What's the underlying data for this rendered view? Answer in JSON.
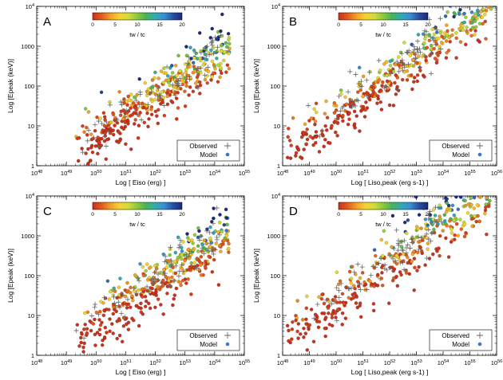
{
  "colors": {
    "colorscale": [
      "#c8321e",
      "#e05a1e",
      "#f0a028",
      "#f5d232",
      "#d2dc3c",
      "#8cc83c",
      "#46b45a",
      "#32aab4",
      "#3c8cd2",
      "#2850a0",
      "#1e2878"
    ],
    "observed_marker": "#666666",
    "model_marker": "#3c78c8",
    "axis": "#000000"
  },
  "colorbar": {
    "label": "tw / tc",
    "ticks": [
      "0",
      "5",
      "10",
      "15",
      "20"
    ],
    "range": [
      0,
      20
    ]
  },
  "legend": {
    "observed": "Observed",
    "model": "Model"
  },
  "chart_data": [
    {
      "panel": "A",
      "type": "scatter",
      "xlabel": "Log [ Eiso (erg) ]",
      "ylabel": "Log [Epeak (keV)]",
      "xlim": [
        48,
        55
      ],
      "ylim": [
        0,
        4
      ],
      "x_ticks": [
        "10^48",
        "10^49",
        "10^50",
        "10^51",
        "10^52",
        "10^53",
        "10^54",
        "10^55"
      ],
      "y_ticks": [
        "1",
        "10",
        "100",
        "1000",
        "10^4"
      ],
      "trend": {
        "slope": 0.5,
        "intercept_at_x48": -0.3
      },
      "model_points": {
        "n": 380,
        "x_range": [
          49.3,
          54.5
        ],
        "scatter_dex": 0.32
      },
      "observed_points": {
        "n": 70,
        "x_range": [
          49.2,
          54.2
        ],
        "scatter_dex": 0.25
      }
    },
    {
      "panel": "B",
      "type": "scatter",
      "xlabel": "Log [ Liso,peak (erg s-1) ]",
      "ylabel": "Log [Epeak (keV)]",
      "xlim": [
        48,
        56
      ],
      "ylim": [
        0,
        4
      ],
      "x_ticks": [
        "10^48",
        "10^49",
        "10^50",
        "10^51",
        "10^52",
        "10^53",
        "10^54",
        "10^55",
        "10^56"
      ],
      "y_ticks": [
        "1",
        "10",
        "100",
        "1000",
        "10^4"
      ],
      "trend": {
        "slope": 0.48,
        "intercept_at_x48": 0.3
      },
      "model_points": {
        "n": 380,
        "x_range": [
          48.1,
          55.8
        ],
        "scatter_dex": 0.32
      },
      "observed_points": {
        "n": 70,
        "x_range": [
          48.7,
          54.0
        ],
        "scatter_dex": 0.25
      }
    },
    {
      "panel": "C",
      "type": "scatter",
      "xlabel": "Log [ Eiso (erg) ]",
      "ylabel": "Log [Epeak (keV)]",
      "xlim": [
        48,
        55
      ],
      "ylim": [
        0,
        4
      ],
      "x_ticks": [
        "10^48",
        "10^49",
        "10^50",
        "10^51",
        "10^52",
        "10^53",
        "10^54",
        "10^55"
      ],
      "y_ticks": [
        "1",
        "10",
        "100",
        "1000",
        "10^4"
      ],
      "trend": {
        "slope": 0.5,
        "intercept_at_x48": -0.2
      },
      "model_points": {
        "n": 380,
        "x_range": [
          49.3,
          54.5
        ],
        "scatter_dex": 0.36
      },
      "observed_points": {
        "n": 70,
        "x_range": [
          49.2,
          54.2
        ],
        "scatter_dex": 0.25
      }
    },
    {
      "panel": "D",
      "type": "scatter",
      "xlabel": "Log [ Liso,peak (erg s-1) ]",
      "ylabel": "Log [Epeak (keV)]",
      "xlim": [
        48,
        56
      ],
      "ylim": [
        0,
        4
      ],
      "x_ticks": [
        "10^48",
        "10^49",
        "10^50",
        "10^51",
        "10^52",
        "10^53",
        "10^54",
        "10^55",
        "10^56"
      ],
      "y_ticks": [
        "1",
        "10",
        "100",
        "1000",
        "10^4"
      ],
      "trend": {
        "slope": 0.48,
        "intercept_at_x48": 0.35
      },
      "model_points": {
        "n": 380,
        "x_range": [
          48.1,
          55.8
        ],
        "scatter_dex": 0.36
      },
      "observed_points": {
        "n": 70,
        "x_range": [
          48.7,
          54.0
        ],
        "scatter_dex": 0.25
      }
    }
  ]
}
